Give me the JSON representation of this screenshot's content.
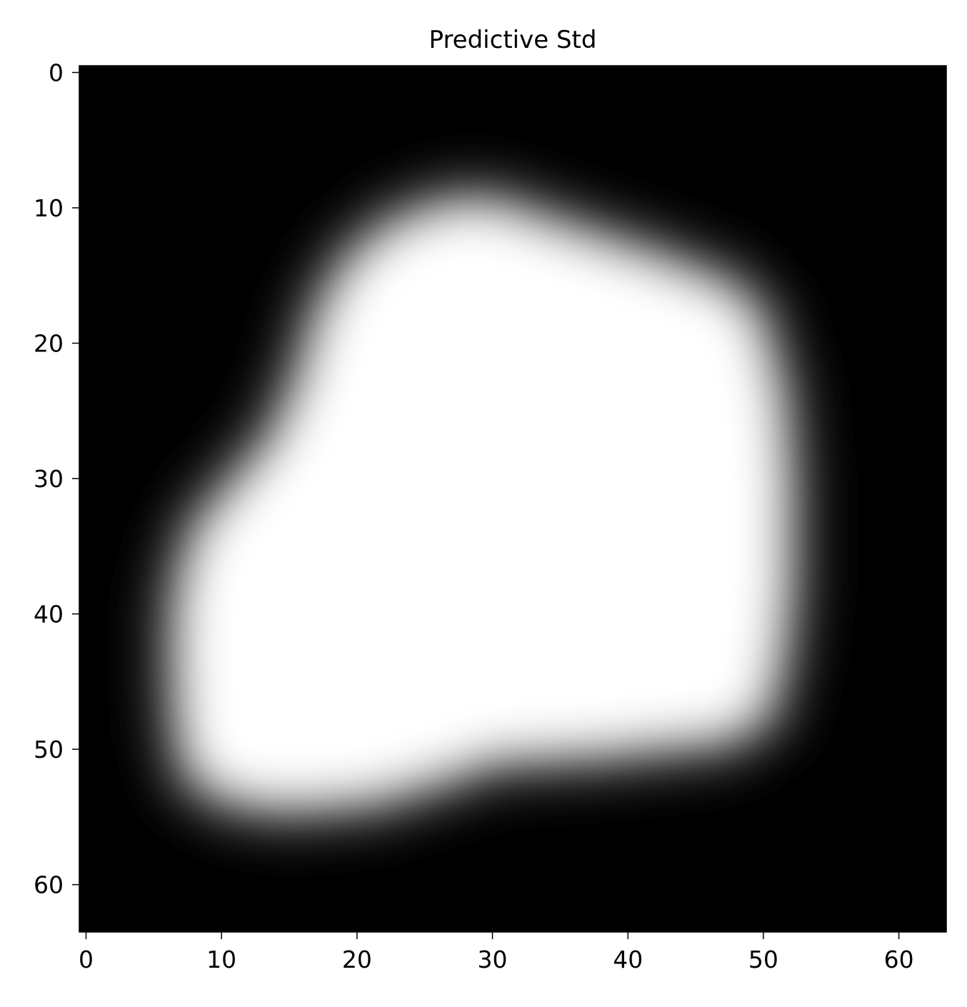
{
  "chart_data": {
    "type": "heatmap",
    "title": "Predictive Std",
    "xlabel": "",
    "ylabel": "",
    "colormap": "gray",
    "grid_size": [
      64,
      64
    ],
    "xlim": [
      -0.5,
      63.5
    ],
    "ylim": [
      63.5,
      -0.5
    ],
    "x_ticks": [
      0,
      10,
      20,
      30,
      40,
      50,
      60
    ],
    "y_ticks": [
      0,
      10,
      20,
      30,
      40,
      50,
      60
    ],
    "shape_outline": [
      [
        30,
        10.5
      ],
      [
        36,
        12.5
      ],
      [
        42,
        14.5
      ],
      [
        47,
        16.5
      ],
      [
        49,
        18.5
      ],
      [
        50.5,
        24
      ],
      [
        51,
        30
      ],
      [
        51,
        38
      ],
      [
        50.5,
        43
      ],
      [
        49.5,
        47
      ],
      [
        47,
        48.5
      ],
      [
        38,
        49.5
      ],
      [
        30,
        50
      ],
      [
        26,
        51.5
      ],
      [
        21,
        53
      ],
      [
        15,
        53.5
      ],
      [
        11,
        53
      ],
      [
        8.5,
        51.5
      ],
      [
        7.8,
        49
      ],
      [
        7.5,
        45
      ],
      [
        7.5,
        40
      ],
      [
        8,
        37
      ],
      [
        9,
        34
      ],
      [
        11.5,
        31
      ],
      [
        14.5,
        27.5
      ],
      [
        16.5,
        23
      ],
      [
        18,
        18
      ],
      [
        20,
        14.5
      ],
      [
        23,
        12
      ],
      [
        27,
        10.5
      ]
    ]
  }
}
